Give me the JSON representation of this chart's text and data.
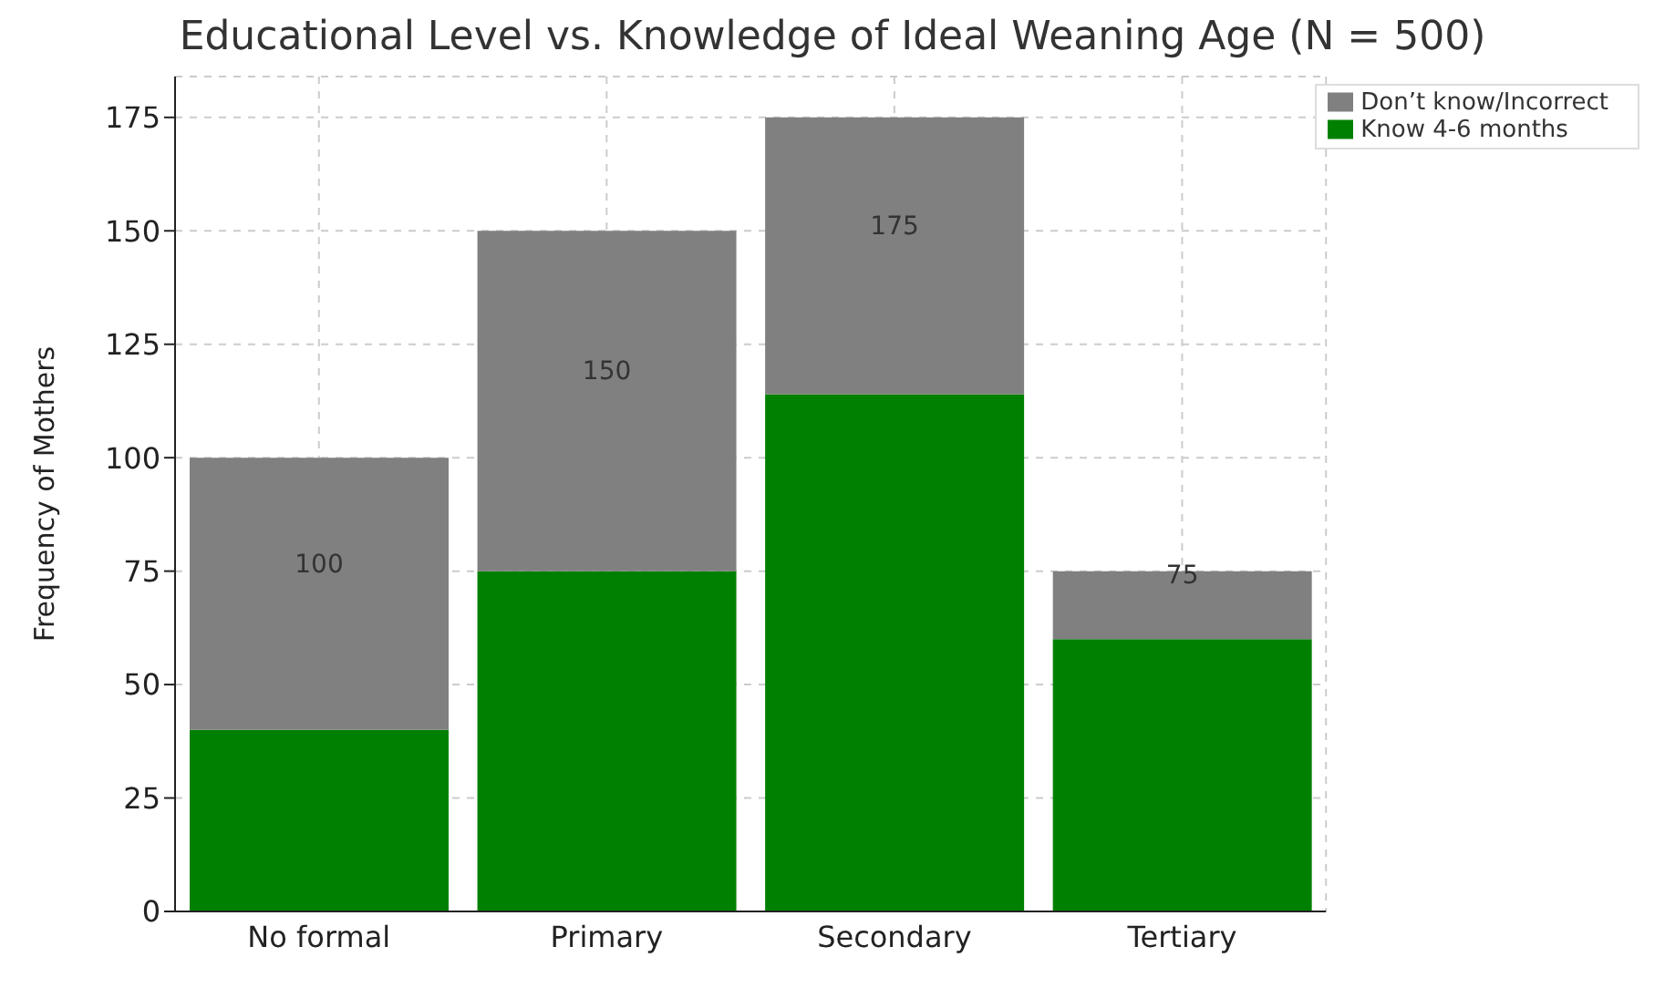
{
  "chart_data": {
    "type": "bar",
    "title": "Educational Level vs. Knowledge of Ideal Weaning Age (N = 500)",
    "ylabel": "Frequency of Mothers",
    "categories": [
      "No formal",
      "Primary",
      "Secondary",
      "Tertiary"
    ],
    "series": [
      {
        "name": "Know 4-6 months",
        "color": "#008000",
        "values": [
          40,
          75,
          114,
          60
        ]
      },
      {
        "name": "Don’t know/Incorrect",
        "color": "#808080",
        "values": [
          60,
          75,
          61,
          15
        ]
      }
    ],
    "stacked": true,
    "totals": [
      "100",
      "150",
      "175",
      "75"
    ],
    "ylim": [
      0,
      184
    ],
    "yticks": [
      0,
      25,
      50,
      75,
      100,
      125,
      150,
      175
    ],
    "grid": true,
    "legend": "top right"
  }
}
